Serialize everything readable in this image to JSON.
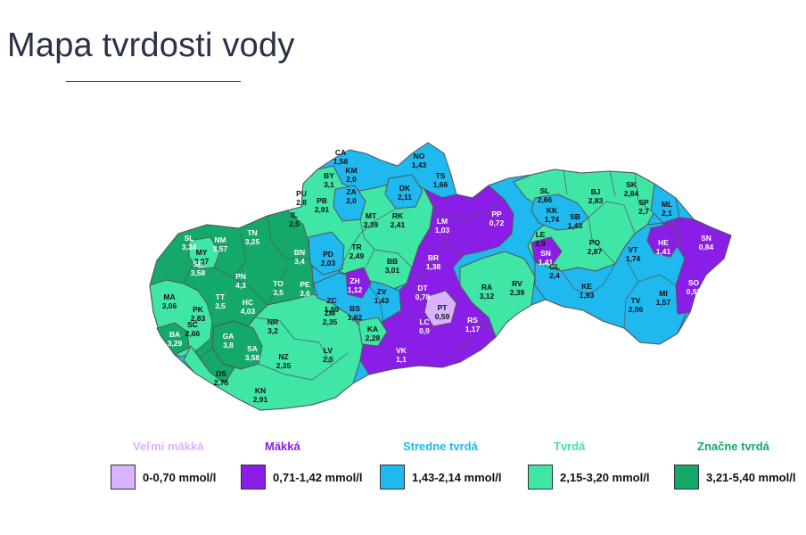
{
  "title": "Mapa tvrdosti vody",
  "colors": {
    "very_soft": "#d9b3ff",
    "soft": "#8a1ee6",
    "medium": "#1fb8ef",
    "hard": "#3fe6a5",
    "very_hard": "#14a86a",
    "border": "#555555"
  },
  "legend": [
    {
      "heading": "Veľmi mäkká",
      "range": "0-0,70 mmol/l",
      "color": "#d9b3ff",
      "heading_color": "#d9b3ff"
    },
    {
      "heading": "Mäkká",
      "range": "0,71-1,42 mmol/l",
      "color": "#8a1ee6",
      "heading_color": "#8a1ee6"
    },
    {
      "heading": "Stredne tvrdá",
      "range": "1,43-2,14 mmol/l",
      "color": "#1fb8ef",
      "heading_color": "#1fb8ef"
    },
    {
      "heading": "Tvrdá",
      "range": "2,15-3,20 mmol/l",
      "color": "#3fe6a5",
      "heading_color": "#3fe6a5"
    },
    {
      "heading": "Značne tvrdá",
      "range": "3,21-5,40 mmol/l",
      "color": "#14a86a",
      "heading_color": "#14a86a"
    }
  ],
  "districts": [
    {
      "code": "CA",
      "value": "1,58",
      "cat": "medium"
    },
    {
      "code": "NO",
      "value": "1,43",
      "cat": "medium"
    },
    {
      "code": "KM",
      "value": "2,0",
      "cat": "medium"
    },
    {
      "code": "TS",
      "value": "1,66",
      "cat": "medium"
    },
    {
      "code": "BY",
      "value": "3,1",
      "cat": "hard"
    },
    {
      "code": "ZA",
      "value": "2,0",
      "cat": "medium"
    },
    {
      "code": "PU",
      "value": "2,8",
      "cat": "hard"
    },
    {
      "code": "PB",
      "value": "2,91",
      "cat": "hard"
    },
    {
      "code": "DK",
      "value": "2,11",
      "cat": "medium"
    },
    {
      "code": "IL",
      "value": "2,5",
      "cat": "hard"
    },
    {
      "code": "MT",
      "value": "2,39",
      "cat": "hard"
    },
    {
      "code": "RK",
      "value": "2,41",
      "cat": "hard"
    },
    {
      "code": "LM",
      "value": "1,03",
      "cat": "soft"
    },
    {
      "code": "PP",
      "value": "0,72",
      "cat": "soft"
    },
    {
      "code": "SL",
      "value": "2,66",
      "cat": "hard"
    },
    {
      "code": "SK",
      "value": "2,84",
      "cat": "hard"
    },
    {
      "code": "BJ",
      "value": "2,83",
      "cat": "hard"
    },
    {
      "code": "SP",
      "value": "2,7",
      "cat": "hard"
    },
    {
      "code": "ML",
      "value": "2,1",
      "cat": "medium"
    },
    {
      "code": "KK",
      "value": "1,74",
      "cat": "medium"
    },
    {
      "code": "SB",
      "value": "1,43",
      "cat": "medium"
    },
    {
      "code": "LE",
      "value": "2,9",
      "cat": "hard"
    },
    {
      "code": "HE",
      "value": "1,41",
      "cat": "soft"
    },
    {
      "code": "SN",
      "value": "0,84",
      "cat": "soft"
    },
    {
      "code": "TN",
      "value": "3,25",
      "cat": "very_hard"
    },
    {
      "code": "NM",
      "value": "3,57",
      "cat": "very_hard"
    },
    {
      "code": "SL",
      "value": "3,34",
      "cat": "very_hard"
    },
    {
      "code": "MY",
      "value": "3,07",
      "cat": "hard"
    },
    {
      "code": "BN",
      "value": "3,4",
      "cat": "very_hard"
    },
    {
      "code": "PD",
      "value": "2,03",
      "cat": "medium"
    },
    {
      "code": "TR",
      "value": "2,49",
      "cat": "hard"
    },
    {
      "code": "BB",
      "value": "3,01",
      "cat": "hard"
    },
    {
      "code": "BR",
      "value": "1,38",
      "cat": "soft"
    },
    {
      "code": "SN",
      "value": "1,41",
      "cat": "soft"
    },
    {
      "code": "PO",
      "value": "2,87",
      "cat": "hard"
    },
    {
      "code": "VT",
      "value": "1,74",
      "cat": "medium"
    },
    {
      "code": "GL",
      "value": "2,4",
      "cat": "hard"
    },
    {
      "code": "SE",
      "value": "3,58",
      "cat": "very_hard"
    },
    {
      "code": "PN",
      "value": "4,3",
      "cat": "very_hard"
    },
    {
      "code": "TO",
      "value": "3,5",
      "cat": "very_hard"
    },
    {
      "code": "PE",
      "value": "3,6",
      "cat": "very_hard"
    },
    {
      "code": "ZH",
      "value": "1,12",
      "cat": "soft"
    },
    {
      "code": "ZC",
      "value": "1,99",
      "cat": "medium"
    },
    {
      "code": "ZV",
      "value": "1,43",
      "cat": "medium"
    },
    {
      "code": "DT",
      "value": "0,78",
      "cat": "soft"
    },
    {
      "code": "RA",
      "value": "3,12",
      "cat": "hard"
    },
    {
      "code": "RV",
      "value": "2,39",
      "cat": "hard"
    },
    {
      "code": "KE",
      "value": "1,93",
      "cat": "medium"
    },
    {
      "code": "MI",
      "value": "1,57",
      "cat": "medium"
    },
    {
      "code": "SO",
      "value": "0,93",
      "cat": "soft"
    },
    {
      "code": "MA",
      "value": "3,06",
      "cat": "hard"
    },
    {
      "code": "TT",
      "value": "3,5",
      "cat": "very_hard"
    },
    {
      "code": "HC",
      "value": "4,03",
      "cat": "very_hard"
    },
    {
      "code": "ZM",
      "value": "2,35",
      "cat": "hard"
    },
    {
      "code": "BS",
      "value": "1,62",
      "cat": "medium"
    },
    {
      "code": "PT",
      "value": "0,59",
      "cat": "very_soft"
    },
    {
      "code": "TV",
      "value": "2,06",
      "cat": "medium"
    },
    {
      "code": "PK",
      "value": "2,83",
      "cat": "hard"
    },
    {
      "code": "SC",
      "value": "2,66",
      "cat": "hard"
    },
    {
      "code": "BA",
      "value": "3,29",
      "cat": "very_hard"
    },
    {
      "code": "GA",
      "value": "3,8",
      "cat": "very_hard"
    },
    {
      "code": "NR",
      "value": "3,2",
      "cat": "hard"
    },
    {
      "code": "KA",
      "value": "2,28",
      "cat": "hard"
    },
    {
      "code": "LC",
      "value": "0,9",
      "cat": "soft"
    },
    {
      "code": "RS",
      "value": "1,17",
      "cat": "soft"
    },
    {
      "code": "SA",
      "value": "3,58",
      "cat": "very_hard"
    },
    {
      "code": "LV",
      "value": "2,5",
      "cat": "hard"
    },
    {
      "code": "VK",
      "value": "1,1",
      "cat": "soft"
    },
    {
      "code": "DS",
      "value": "2,75",
      "cat": "hard"
    },
    {
      "code": "NZ",
      "value": "2,35",
      "cat": "hard"
    },
    {
      "code": "KN",
      "value": "2,91",
      "cat": "hard"
    }
  ]
}
